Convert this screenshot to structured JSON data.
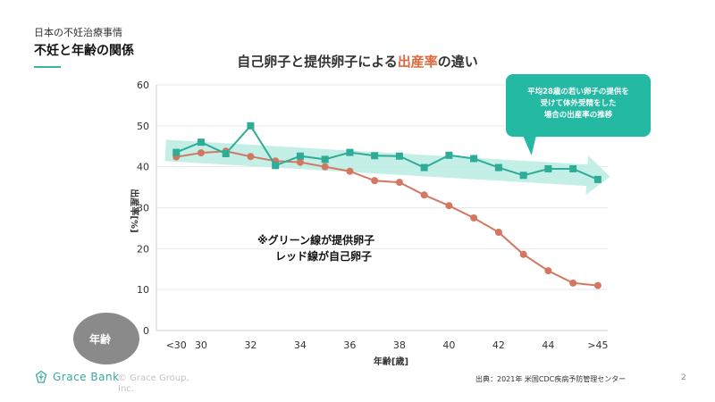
{
  "header": {
    "subtitle": "日本の不妊治療事情",
    "title": "不妊と年齢の関係"
  },
  "chart_data": {
    "type": "line",
    "title_parts": [
      "自己卵子と提供卵子による",
      "出産率",
      "の違い"
    ],
    "x_tick_labels": [
      "<30",
      "30",
      "32",
      "34",
      "36",
      "38",
      "40",
      "42",
      "44",
      ">45"
    ],
    "ylabel": "出産率[%]",
    "xlabel": "年齢[歳]",
    "ylim": [
      0,
      60
    ],
    "y_ticks": [
      0,
      10,
      20,
      30,
      40,
      50,
      60
    ],
    "series": [
      {
        "name": "提供卵子",
        "color": "#2fac97",
        "marker": "square",
        "x": [
          29,
          30,
          31,
          32,
          33,
          34,
          35,
          36,
          37,
          38,
          39,
          40,
          41,
          42,
          43,
          44,
          45,
          46
        ],
        "values": [
          43.5,
          46,
          43.2,
          50,
          40.3,
          42.6,
          41.8,
          43.5,
          42.7,
          42.6,
          39.8,
          42.8,
          42,
          39.8,
          37.9,
          39.5,
          39.5,
          36.9
        ]
      },
      {
        "name": "自己卵子",
        "color": "#d57760",
        "marker": "circle",
        "x": [
          29,
          30,
          31,
          32,
          33,
          34,
          35,
          36,
          37,
          38,
          39,
          40,
          41,
          42,
          43,
          44,
          45,
          46
        ],
        "values": [
          42.4,
          43.4,
          43.8,
          42.5,
          41.4,
          41.1,
          40,
          38.9,
          36.6,
          36.2,
          33.1,
          30.5,
          27.5,
          24,
          18.6,
          14.6,
          11.6,
          11
        ]
      }
    ],
    "trend_arrow": {
      "from": [
        29,
        44
      ],
      "to": [
        46.5,
        37.6
      ],
      "color": "#b9ece3"
    },
    "callout": [
      "平均28歳の若い卵子の提供を",
      "受けて体外受精をした",
      "場合の出産率の推移"
    ],
    "note": [
      "※グリーン線が提供卵子",
      "レッド線が自己卵子"
    ],
    "age_marker": "年齢"
  },
  "footer": {
    "logo": "Grace Bank",
    "copyright": "© Grace Group, Inc.",
    "source": "出典：2021年 米国CDC疾病予防管理センター",
    "page": "2"
  }
}
